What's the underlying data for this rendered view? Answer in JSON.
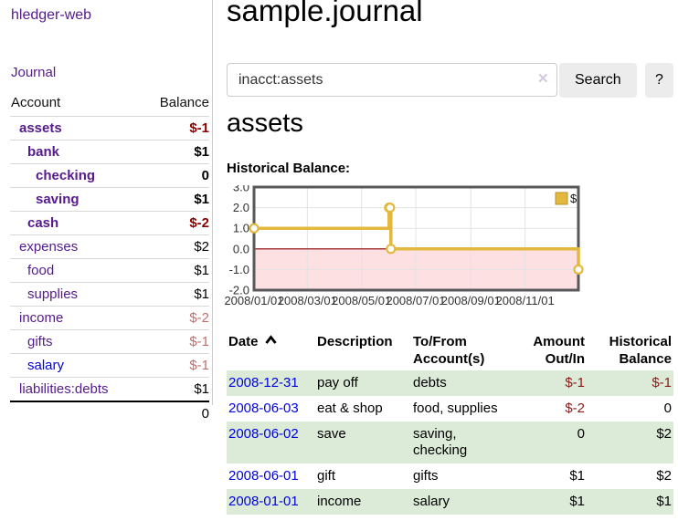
{
  "app_title": "hledger-web",
  "colors": {
    "link_visited_purple": "#551a8b",
    "link_blue": "#0000e0",
    "negative_strong_red": "#8b0000",
    "negative_muted_red": "#c0706f",
    "register_negative_red": "#8b1a1a",
    "stripe_green": "#dcead8",
    "chart_gold": "#e3b83e",
    "chart_negative_pink": "#fce0e2",
    "chart_zero_line": "#8b0000"
  },
  "sidebar": {
    "journal_link": "Journal",
    "accounts": {
      "header_account": "Account",
      "header_balance": "Balance",
      "rows": [
        {
          "name": "assets",
          "balance": "$-1",
          "depth": 1,
          "bold": true,
          "balance_class": "strong-neg",
          "link": "visited"
        },
        {
          "name": "bank",
          "balance": "$1",
          "depth": 2,
          "bold": true,
          "balance_class": "",
          "link": "visited"
        },
        {
          "name": "checking",
          "balance": "0",
          "depth": 3,
          "bold": true,
          "balance_class": "",
          "link": "visited"
        },
        {
          "name": "saving",
          "balance": "$1",
          "depth": 3,
          "bold": true,
          "balance_class": "",
          "link": "visited"
        },
        {
          "name": "cash",
          "balance": "$-2",
          "depth": 2,
          "bold": true,
          "balance_class": "strong-neg",
          "link": "visited"
        },
        {
          "name": "expenses",
          "balance": "$2",
          "depth": 1,
          "bold": false,
          "balance_class": "",
          "link": "visited"
        },
        {
          "name": "food",
          "balance": "$1",
          "depth": 2,
          "bold": false,
          "balance_class": "",
          "link": "visited"
        },
        {
          "name": "supplies",
          "balance": "$1",
          "depth": 2,
          "bold": false,
          "balance_class": "",
          "link": "visited"
        },
        {
          "name": "income",
          "balance": "$-2",
          "depth": 1,
          "bold": false,
          "balance_class": "neg",
          "link": "visited"
        },
        {
          "name": "gifts",
          "balance": "$-1",
          "depth": 2,
          "bold": false,
          "balance_class": "neg",
          "link": "visited"
        },
        {
          "name": "salary",
          "balance": "$-1",
          "depth": 2,
          "bold": false,
          "balance_class": "neg",
          "link": "unvisited"
        },
        {
          "name": "liabilities:debts",
          "balance": "$1",
          "depth": 1,
          "bold": false,
          "balance_class": "",
          "link": "visited"
        }
      ],
      "total": "0"
    }
  },
  "main": {
    "title": "sample.journal",
    "search": {
      "value": "inacct:assets",
      "clear_icon": "✕",
      "search_button": "Search",
      "help_button": "?"
    },
    "account_heading": "assets",
    "chart_label": "Historical Balance:"
  },
  "chart_data": {
    "type": "line",
    "step": true,
    "title": "Historical Balance",
    "series": [
      {
        "name": "$",
        "color": "#e3b83e",
        "points": [
          [
            "2008-01-01",
            1
          ],
          [
            "2008-06-01",
            2
          ],
          [
            "2008-06-02",
            2
          ],
          [
            "2008-06-03",
            0
          ],
          [
            "2008-12-31",
            -1
          ]
        ]
      }
    ],
    "x_range": [
      "2008-01-01",
      "2008-12-31"
    ],
    "x_ticks": [
      "2008/01/01",
      "2008/03/01",
      "2008/05/01",
      "2008/07/01",
      "2008/09/01",
      "2008/11/01"
    ],
    "y_ticks": [
      "3.0",
      "2.0",
      "1.0",
      "0.0",
      "-1.0",
      "-2.0"
    ],
    "ylim": [
      -2,
      3
    ],
    "grid": true,
    "legend": {
      "label": "$",
      "position": "top-right"
    },
    "negative_region_color": "#fce0e2",
    "zero_line_color": "#8b0000"
  },
  "register": {
    "headers": {
      "date": "Date",
      "description": "Description",
      "accounts": "To/From Account(s)",
      "amount": "Amount Out/In",
      "balance": "Historical Balance"
    },
    "rows": [
      {
        "date": "2008-12-31",
        "description": "pay off",
        "accounts": "debts",
        "amount": "$-1",
        "balance": "$-1"
      },
      {
        "date": "2008-06-03",
        "description": "eat & shop",
        "accounts": "food, supplies",
        "amount": "$-2",
        "balance": "0"
      },
      {
        "date": "2008-06-02",
        "description": "save",
        "accounts": "saving, checking",
        "amount": "0",
        "balance": "$2"
      },
      {
        "date": "2008-06-01",
        "description": "gift",
        "accounts": "gifts",
        "amount": "$1",
        "balance": "$2"
      },
      {
        "date": "2008-01-01",
        "description": "income",
        "accounts": "salary",
        "amount": "$1",
        "balance": "$1"
      }
    ]
  }
}
